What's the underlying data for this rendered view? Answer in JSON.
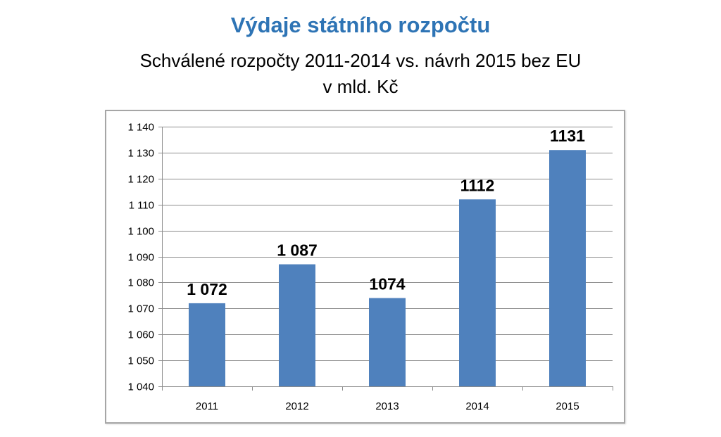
{
  "header": {
    "title": "Výdaje státního rozpočtu",
    "subtitle_line1": "Schválené rozpočty 2011-2014 vs. návrh 2015 bez EU",
    "subtitle_line2": "v mld. Kč"
  },
  "colors": {
    "bar": "#4f81bd",
    "title": "#2e74b5",
    "grid": "#8c8c8c"
  },
  "chart_data": {
    "type": "bar",
    "title": "Výdaje státního rozpočtu",
    "categories": [
      "2011",
      "2012",
      "2013",
      "2014",
      "2015"
    ],
    "values": [
      1072,
      1087,
      1074,
      1112,
      1131
    ],
    "data_labels": [
      "1 072",
      "1 087",
      "1074",
      "1112",
      "1131"
    ],
    "ylim": [
      1040,
      1140
    ],
    "yticks": [
      1040,
      1050,
      1060,
      1070,
      1080,
      1090,
      1100,
      1110,
      1120,
      1130,
      1140
    ],
    "ytick_labels": [
      "1 040",
      "1 050",
      "1 060",
      "1 070",
      "1 080",
      "1 090",
      "1 100",
      "1 110",
      "1 120",
      "1 130",
      "1 140"
    ],
    "xlabel": "",
    "ylabel": "",
    "grid": true,
    "legend": false
  }
}
